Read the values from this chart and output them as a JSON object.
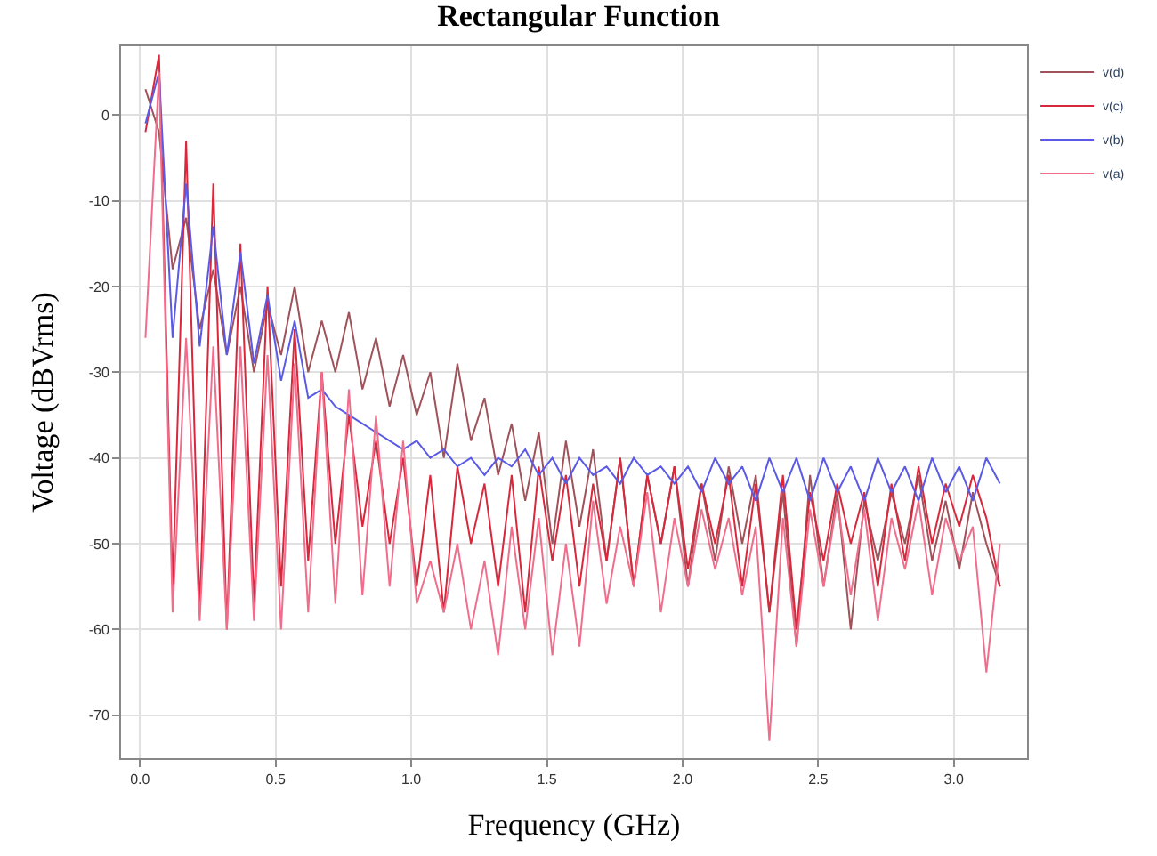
{
  "chart_data": {
    "type": "line",
    "title": "Rectangular Function",
    "xlabel": "Frequency (GHz)",
    "ylabel": "Voltage (dBVrms)",
    "x": [
      0.02,
      0.07,
      0.12,
      0.17,
      0.22,
      0.27,
      0.32,
      0.37,
      0.42,
      0.47,
      0.52,
      0.57,
      0.62,
      0.67,
      0.72,
      0.77,
      0.82,
      0.87,
      0.92,
      0.97,
      1.02,
      1.07,
      1.12,
      1.17,
      1.22,
      1.27,
      1.32,
      1.37,
      1.42,
      1.47,
      1.52,
      1.57,
      1.62,
      1.67,
      1.72,
      1.77,
      1.82,
      1.87,
      1.92,
      1.97,
      2.02,
      2.07,
      2.12,
      2.17,
      2.22,
      2.27,
      2.32,
      2.37,
      2.42,
      2.47,
      2.52,
      2.57,
      2.62,
      2.67,
      2.72,
      2.77,
      2.82,
      2.87,
      2.92,
      2.97,
      3.02,
      3.07,
      3.12,
      3.17
    ],
    "series": [
      {
        "name": "v(d)",
        "color": "#a0525a",
        "values": [
          3,
          -2,
          -18,
          -12,
          -25,
          -18,
          -28,
          -20,
          -30,
          -22,
          -28,
          -20,
          -30,
          -24,
          -30,
          -23,
          -32,
          -26,
          -34,
          -28,
          -35,
          -30,
          -40,
          -29,
          -38,
          -33,
          -42,
          -36,
          -45,
          -37,
          -50,
          -38,
          -48,
          -39,
          -52,
          -40,
          -55,
          -42,
          -50,
          -41,
          -55,
          -43,
          -52,
          -41,
          -50,
          -42,
          -58,
          -44,
          -62,
          -42,
          -55,
          -44,
          -60,
          -45,
          -52,
          -44,
          -50,
          -42,
          -52,
          -45,
          -53,
          -44,
          -50,
          -55
        ]
      },
      {
        "name": "v(c)",
        "color": "#d8283c",
        "values": [
          -2,
          7,
          -55,
          -3,
          -58,
          -8,
          -60,
          -15,
          -57,
          -20,
          -55,
          -25,
          -52,
          -30,
          -50,
          -35,
          -48,
          -38,
          -50,
          -40,
          -55,
          -42,
          -58,
          -41,
          -50,
          -43,
          -55,
          -42,
          -58,
          -41,
          -52,
          -42,
          -55,
          -43,
          -52,
          -40,
          -55,
          -42,
          -50,
          -41,
          -53,
          -43,
          -50,
          -42,
          -55,
          -43,
          -58,
          -42,
          -60,
          -44,
          -52,
          -43,
          -50,
          -44,
          -55,
          -43,
          -52,
          -41,
          -50,
          -43,
          -48,
          -42,
          -47,
          -55
        ]
      },
      {
        "name": "v(b)",
        "color": "#5a5ae6",
        "values": [
          -1,
          5,
          -26,
          -8,
          -27,
          -13,
          -28,
          -16,
          -29,
          -21,
          -31,
          -24,
          -33,
          -32,
          -34,
          -35,
          -36,
          -37,
          -38,
          -39,
          -38,
          -40,
          -39,
          -41,
          -40,
          -42,
          -40,
          -41,
          -39,
          -42,
          -40,
          -43,
          -40,
          -42,
          -41,
          -43,
          -40,
          -42,
          -41,
          -43,
          -41,
          -44,
          -40,
          -43,
          -41,
          -45,
          -40,
          -44,
          -40,
          -45,
          -40,
          -44,
          -41,
          -45,
          -40,
          -44,
          -41,
          -45,
          -40,
          -44,
          -41,
          -45,
          -40,
          -43
        ]
      },
      {
        "name": "v(a)",
        "color": "#f06e8c",
        "values": [
          -26,
          5,
          -58,
          -26,
          -59,
          -27,
          -60,
          -27,
          -59,
          -28,
          -60,
          -29,
          -58,
          -30,
          -57,
          -32,
          -56,
          -35,
          -55,
          -38,
          -57,
          -52,
          -58,
          -50,
          -60,
          -52,
          -63,
          -48,
          -60,
          -47,
          -63,
          -50,
          -62,
          -45,
          -57,
          -48,
          -55,
          -44,
          -58,
          -47,
          -55,
          -46,
          -53,
          -47,
          -56,
          -48,
          -73,
          -47,
          -62,
          -46,
          -55,
          -45,
          -56,
          -46,
          -59,
          -47,
          -53,
          -45,
          -56,
          -47,
          -52,
          -48,
          -65,
          -50
        ]
      }
    ],
    "xlim": [
      -0.07,
      3.27
    ],
    "xticks": [
      {
        "value": 0,
        "label": "0.0"
      },
      {
        "value": 0.5,
        "label": "0.5"
      },
      {
        "value": 1,
        "label": "1.0"
      },
      {
        "value": 1.5,
        "label": "1.5"
      },
      {
        "value": 2,
        "label": "2.0"
      },
      {
        "value": 2.5,
        "label": "2.5"
      },
      {
        "value": 3,
        "label": "3.0"
      }
    ],
    "ylim": [
      -75,
      8
    ],
    "yticks": [
      0,
      -10,
      -20,
      -30,
      -40,
      -50,
      -60,
      -70
    ],
    "grid": true,
    "legend": "top right",
    "marker": "none",
    "line_style": "solid"
  }
}
